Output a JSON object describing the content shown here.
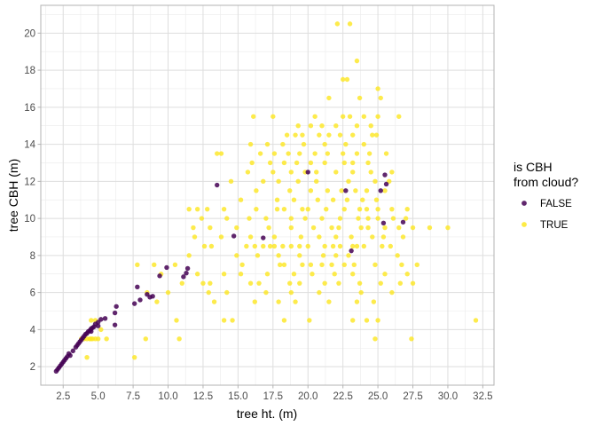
{
  "chart_data": {
    "type": "scatter",
    "title": "",
    "xlabel": "tree ht. (m)",
    "ylabel": "tree CBH (m)",
    "xlim": [
      0.9,
      33.3
    ],
    "ylim": [
      1.0,
      21.5
    ],
    "x_ticks": [
      2.5,
      5.0,
      7.5,
      10.0,
      12.5,
      15.0,
      17.5,
      20.0,
      22.5,
      25.0,
      27.5,
      30.0,
      32.5
    ],
    "x_tick_labels": [
      "2.5",
      "5.0",
      "7.5",
      "10.0",
      "12.5",
      "15.0",
      "17.5",
      "20.0",
      "22.5",
      "25.0",
      "27.5",
      "30.0",
      "32.5"
    ],
    "y_ticks": [
      2,
      4,
      6,
      8,
      10,
      12,
      14,
      16,
      18,
      20
    ],
    "y_tick_labels": [
      "2",
      "4",
      "6",
      "8",
      "10",
      "12",
      "14",
      "16",
      "18",
      "20"
    ],
    "grid": true,
    "legend": {
      "title_lines": [
        "is CBH",
        "from cloud?"
      ],
      "placement": "right"
    },
    "series": [
      {
        "name": "FALSE",
        "color": "#440154",
        "points": [
          [
            2.0,
            1.75
          ],
          [
            2.1,
            1.85
          ],
          [
            2.2,
            1.95
          ],
          [
            2.3,
            2.05
          ],
          [
            2.4,
            2.15
          ],
          [
            2.5,
            2.25
          ],
          [
            2.6,
            2.35
          ],
          [
            2.7,
            2.45
          ],
          [
            2.8,
            2.55
          ],
          [
            2.9,
            2.7
          ],
          [
            3.0,
            2.6
          ],
          [
            3.2,
            2.85
          ],
          [
            3.4,
            3.05
          ],
          [
            3.5,
            3.15
          ],
          [
            3.6,
            3.25
          ],
          [
            3.7,
            3.35
          ],
          [
            3.8,
            3.45
          ],
          [
            3.9,
            3.55
          ],
          [
            4.0,
            3.65
          ],
          [
            4.1,
            3.75
          ],
          [
            4.2,
            3.8
          ],
          [
            4.3,
            3.9
          ],
          [
            4.4,
            3.95
          ],
          [
            4.5,
            4.05
          ],
          [
            4.6,
            4.1
          ],
          [
            4.7,
            4.15
          ],
          [
            4.8,
            4.3
          ],
          [
            5.0,
            4.4
          ],
          [
            5.2,
            4.55
          ],
          [
            5.5,
            4.6
          ],
          [
            5.0,
            4.2
          ],
          [
            4.5,
            3.9
          ],
          [
            6.2,
            4.9
          ],
          [
            6.3,
            5.25
          ],
          [
            6.2,
            4.25
          ],
          [
            7.6,
            5.4
          ],
          [
            7.8,
            6.3
          ],
          [
            8.0,
            5.6
          ],
          [
            8.5,
            5.9
          ],
          [
            8.7,
            5.75
          ],
          [
            8.9,
            5.8
          ],
          [
            9.4,
            6.9
          ],
          [
            9.9,
            7.35
          ],
          [
            11.1,
            6.85
          ],
          [
            11.3,
            7.05
          ],
          [
            11.4,
            7.3
          ],
          [
            13.5,
            11.8
          ],
          [
            14.7,
            9.05
          ],
          [
            16.8,
            8.95
          ],
          [
            20.0,
            12.5
          ],
          [
            22.7,
            11.5
          ],
          [
            23.1,
            8.25
          ],
          [
            25.2,
            11.5
          ],
          [
            25.5,
            12.35
          ],
          [
            25.4,
            9.75
          ],
          [
            25.6,
            11.85
          ],
          [
            26.8,
            9.8
          ]
        ]
      },
      {
        "name": "TRUE",
        "color": "#fde725",
        "points": [
          [
            22.1,
            20.5
          ],
          [
            23.0,
            20.5
          ],
          [
            23.5,
            18.5
          ],
          [
            22.5,
            17.5
          ],
          [
            22.8,
            17.5
          ],
          [
            25.0,
            17.0
          ],
          [
            21.5,
            16.5
          ],
          [
            23.7,
            16.5
          ],
          [
            25.2,
            16.5
          ],
          [
            16.1,
            15.5
          ],
          [
            17.5,
            15.5
          ],
          [
            20.5,
            15.5
          ],
          [
            22.5,
            15.5
          ],
          [
            23.0,
            15.5
          ],
          [
            24.0,
            15.5
          ],
          [
            25.0,
            15.5
          ],
          [
            26.5,
            15.5
          ],
          [
            19.3,
            15.0
          ],
          [
            20.2,
            15.0
          ],
          [
            21.0,
            15.0
          ],
          [
            22.0,
            15.0
          ],
          [
            23.5,
            15.0
          ],
          [
            24.5,
            15.0
          ],
          [
            18.5,
            14.5
          ],
          [
            19.1,
            14.5
          ],
          [
            19.6,
            14.5
          ],
          [
            20.8,
            14.5
          ],
          [
            21.5,
            14.5
          ],
          [
            22.3,
            14.5
          ],
          [
            23.2,
            14.5
          ],
          [
            24.6,
            14.5
          ],
          [
            24.9,
            14.5
          ],
          [
            15.9,
            14.0
          ],
          [
            17.1,
            14.0
          ],
          [
            18.2,
            14.0
          ],
          [
            19.7,
            14.0
          ],
          [
            21.2,
            14.0
          ],
          [
            22.7,
            14.0
          ],
          [
            24.0,
            14.0
          ],
          [
            13.5,
            13.5
          ],
          [
            13.8,
            13.5
          ],
          [
            16.6,
            13.5
          ],
          [
            17.6,
            13.5
          ],
          [
            18.6,
            13.5
          ],
          [
            19.4,
            13.5
          ],
          [
            20.5,
            13.5
          ],
          [
            21.4,
            13.5
          ],
          [
            22.5,
            13.5
          ],
          [
            23.5,
            13.5
          ],
          [
            24.4,
            13.5
          ],
          [
            25.6,
            13.5
          ],
          [
            16.0,
            13.0
          ],
          [
            17.3,
            13.0
          ],
          [
            18.3,
            13.0
          ],
          [
            19.2,
            13.0
          ],
          [
            20.2,
            13.0
          ],
          [
            21.2,
            13.0
          ],
          [
            22.6,
            13.0
          ],
          [
            23.2,
            13.0
          ],
          [
            24.3,
            13.0
          ],
          [
            15.7,
            12.5
          ],
          [
            17.5,
            12.5
          ],
          [
            18.8,
            12.5
          ],
          [
            19.8,
            12.5
          ],
          [
            20.6,
            12.5
          ],
          [
            22.0,
            12.5
          ],
          [
            23.2,
            12.5
          ],
          [
            24.5,
            12.5
          ],
          [
            26.0,
            12.5
          ],
          [
            14.5,
            12.0
          ],
          [
            16.8,
            12.0
          ],
          [
            17.9,
            12.0
          ],
          [
            19.3,
            12.0
          ],
          [
            20.6,
            12.0
          ],
          [
            22.9,
            12.0
          ],
          [
            24.8,
            12.0
          ],
          [
            25.8,
            12.0
          ],
          [
            16.3,
            11.5
          ],
          [
            18.7,
            11.5
          ],
          [
            20.2,
            11.5
          ],
          [
            21.4,
            11.5
          ],
          [
            22.4,
            11.5
          ],
          [
            23.4,
            11.5
          ],
          [
            24.2,
            11.5
          ],
          [
            25.5,
            11.5
          ],
          [
            15.2,
            11.0
          ],
          [
            17.8,
            11.0
          ],
          [
            19.0,
            11.0
          ],
          [
            20.7,
            11.0
          ],
          [
            21.8,
            11.0
          ],
          [
            22.8,
            11.0
          ],
          [
            23.9,
            11.0
          ],
          [
            24.9,
            11.0
          ],
          [
            11.5,
            10.5
          ],
          [
            12.1,
            10.5
          ],
          [
            12.8,
            10.5
          ],
          [
            14.0,
            10.5
          ],
          [
            16.3,
            10.5
          ],
          [
            17.8,
            10.5
          ],
          [
            18.3,
            10.5
          ],
          [
            19.6,
            10.5
          ],
          [
            20.0,
            10.5
          ],
          [
            21.3,
            10.5
          ],
          [
            22.6,
            10.5
          ],
          [
            23.7,
            10.5
          ],
          [
            24.2,
            10.5
          ],
          [
            25.0,
            10.5
          ],
          [
            26.0,
            10.5
          ],
          [
            27.1,
            10.5
          ],
          [
            12.4,
            10.0
          ],
          [
            14.2,
            10.0
          ],
          [
            15.8,
            10.0
          ],
          [
            17.0,
            10.0
          ],
          [
            18.8,
            10.0
          ],
          [
            19.8,
            10.0
          ],
          [
            21.0,
            10.0
          ],
          [
            22.3,
            10.0
          ],
          [
            23.6,
            10.0
          ],
          [
            24.3,
            10.0
          ],
          [
            25.0,
            10.0
          ],
          [
            26.1,
            10.0
          ],
          [
            27.0,
            10.0
          ],
          [
            11.8,
            9.5
          ],
          [
            13.0,
            9.5
          ],
          [
            14.9,
            9.5
          ],
          [
            17.2,
            9.5
          ],
          [
            18.8,
            9.5
          ],
          [
            20.4,
            9.5
          ],
          [
            21.7,
            9.5
          ],
          [
            22.2,
            9.5
          ],
          [
            23.8,
            9.5
          ],
          [
            24.3,
            9.5
          ],
          [
            25.5,
            9.5
          ],
          [
            26.5,
            9.5
          ],
          [
            27.5,
            9.5
          ],
          [
            28.7,
            9.5
          ],
          [
            30.0,
            9.5
          ],
          [
            11.9,
            9.0
          ],
          [
            13.8,
            9.0
          ],
          [
            15.9,
            9.0
          ],
          [
            17.6,
            9.0
          ],
          [
            19.5,
            9.0
          ],
          [
            20.8,
            9.0
          ],
          [
            22.0,
            9.0
          ],
          [
            23.1,
            9.0
          ],
          [
            24.6,
            9.0
          ],
          [
            25.4,
            9.0
          ],
          [
            26.8,
            9.0
          ],
          [
            12.6,
            8.5
          ],
          [
            13.1,
            8.5
          ],
          [
            15.6,
            8.5
          ],
          [
            16.2,
            8.5
          ],
          [
            16.8,
            8.5
          ],
          [
            17.3,
            8.5
          ],
          [
            17.6,
            8.5
          ],
          [
            18.2,
            8.5
          ],
          [
            18.8,
            8.5
          ],
          [
            19.4,
            8.5
          ],
          [
            20.0,
            8.5
          ],
          [
            21.2,
            8.5
          ],
          [
            21.8,
            8.5
          ],
          [
            22.3,
            8.5
          ],
          [
            23.2,
            8.5
          ],
          [
            23.5,
            8.5
          ],
          [
            24.0,
            8.5
          ],
          [
            25.3,
            8.5
          ],
          [
            25.9,
            8.5
          ],
          [
            11.5,
            8.0
          ],
          [
            14.9,
            8.0
          ],
          [
            16.4,
            8.0
          ],
          [
            17.9,
            8.0
          ],
          [
            19.4,
            8.0
          ],
          [
            21.1,
            8.0
          ],
          [
            22.0,
            8.0
          ],
          [
            22.9,
            8.0
          ],
          [
            26.4,
            8.0
          ],
          [
            15.3,
            7.5
          ],
          [
            18.0,
            7.5
          ],
          [
            18.3,
            7.5
          ],
          [
            19.6,
            7.5
          ],
          [
            20.2,
            7.5
          ],
          [
            21.0,
            7.5
          ],
          [
            21.7,
            7.5
          ],
          [
            22.6,
            7.5
          ],
          [
            23.3,
            7.5
          ],
          [
            24.8,
            7.5
          ],
          [
            26.7,
            7.5
          ],
          [
            27.8,
            7.5
          ],
          [
            7.8,
            7.5
          ],
          [
            9.0,
            7.5
          ],
          [
            10.5,
            7.5
          ],
          [
            9.5,
            7.0
          ],
          [
            12.1,
            7.0
          ],
          [
            14.0,
            7.0
          ],
          [
            15.2,
            7.0
          ],
          [
            17.1,
            7.0
          ],
          [
            19.0,
            7.0
          ],
          [
            20.3,
            7.0
          ],
          [
            21.9,
            7.0
          ],
          [
            23.2,
            7.0
          ],
          [
            25.5,
            7.0
          ],
          [
            27.1,
            7.0
          ],
          [
            11.0,
            6.5
          ],
          [
            12.5,
            6.5
          ],
          [
            13.0,
            6.5
          ],
          [
            15.9,
            6.5
          ],
          [
            16.5,
            6.5
          ],
          [
            18.7,
            6.5
          ],
          [
            19.4,
            6.5
          ],
          [
            21.2,
            6.5
          ],
          [
            22.2,
            6.5
          ],
          [
            23.7,
            6.5
          ],
          [
            25.2,
            6.5
          ],
          [
            26.6,
            6.5
          ],
          [
            27.5,
            6.5
          ],
          [
            8.5,
            6.0
          ],
          [
            10.0,
            6.0
          ],
          [
            12.9,
            6.0
          ],
          [
            14.2,
            6.0
          ],
          [
            17.0,
            6.0
          ],
          [
            18.8,
            6.0
          ],
          [
            20.8,
            6.0
          ],
          [
            23.8,
            6.0
          ],
          [
            26.0,
            6.0
          ],
          [
            9.2,
            5.5
          ],
          [
            13.3,
            5.5
          ],
          [
            16.2,
            5.5
          ],
          [
            17.9,
            5.5
          ],
          [
            19.1,
            5.5
          ],
          [
            21.5,
            5.5
          ],
          [
            23.5,
            5.5
          ],
          [
            24.7,
            5.5
          ],
          [
            10.6,
            4.5
          ],
          [
            14.0,
            4.5
          ],
          [
            14.6,
            4.5
          ],
          [
            18.3,
            4.5
          ],
          [
            20.1,
            4.5
          ],
          [
            23.2,
            4.5
          ],
          [
            24.2,
            4.5
          ],
          [
            25.0,
            4.5
          ],
          [
            32.0,
            4.5
          ],
          [
            3.8,
            3.5
          ],
          [
            4.0,
            3.5
          ],
          [
            4.2,
            3.5
          ],
          [
            4.4,
            3.5
          ],
          [
            4.5,
            3.5
          ],
          [
            4.6,
            3.5
          ],
          [
            4.8,
            3.5
          ],
          [
            5.0,
            3.5
          ],
          [
            5.6,
            3.5
          ],
          [
            8.4,
            3.5
          ],
          [
            10.8,
            3.5
          ],
          [
            24.8,
            3.5
          ],
          [
            27.4,
            3.5
          ],
          [
            4.5,
            4.5
          ],
          [
            4.8,
            4.5
          ],
          [
            4.2,
            2.5
          ],
          [
            7.6,
            2.5
          ],
          [
            5.2,
            4.0
          ]
        ]
      }
    ]
  }
}
